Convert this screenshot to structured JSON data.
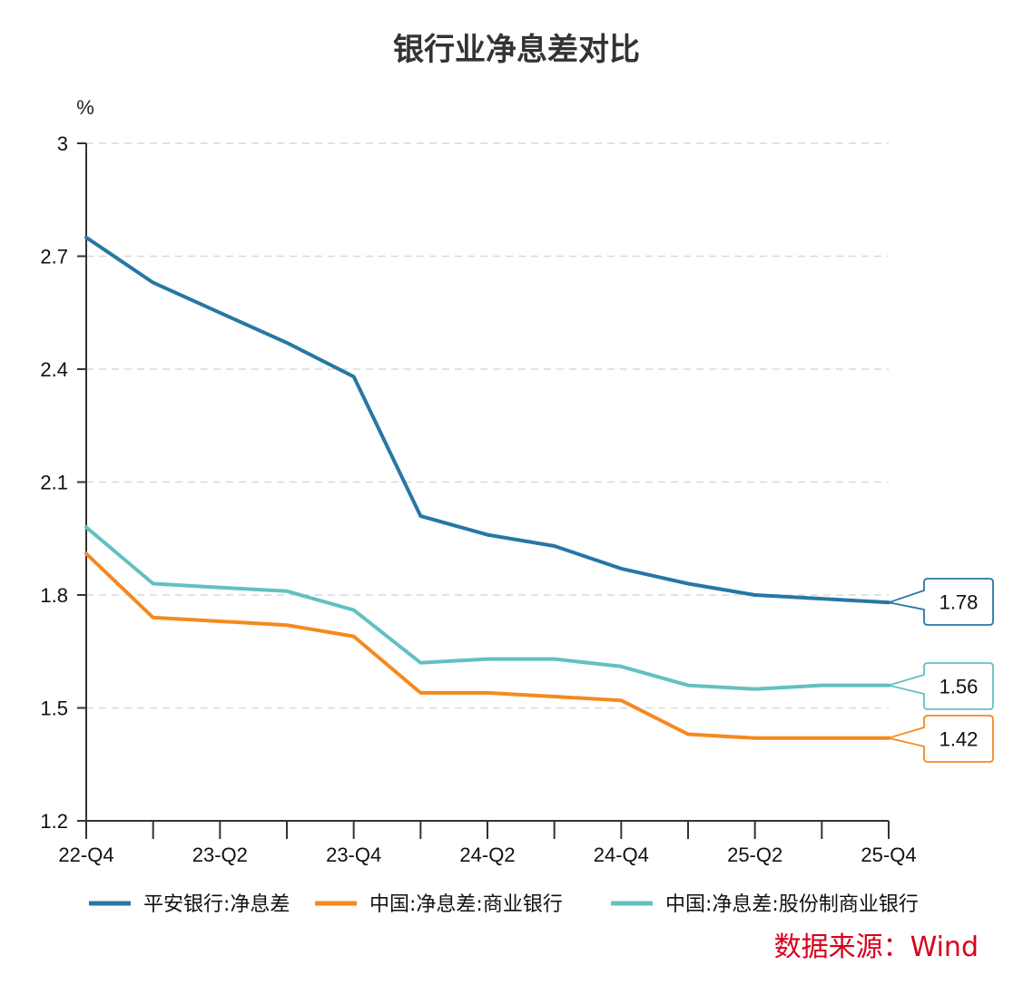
{
  "chart_data": {
    "type": "line",
    "title": "银行业净息差对比",
    "ylabel": "%",
    "xlabel": "",
    "ylim": [
      1.2,
      3
    ],
    "yticks": [
      "1.2",
      "1.5",
      "1.8",
      "2.1",
      "2.4",
      "2.7",
      "3"
    ],
    "ytick_values": [
      1.2,
      1.5,
      1.8,
      2.1,
      2.4,
      2.7,
      3
    ],
    "x": [
      "22-Q4",
      "23-Q1",
      "23-Q2",
      "23-Q3",
      "23-Q4",
      "24-Q1",
      "24-Q2",
      "24-Q3",
      "24-Q4",
      "25-Q1",
      "25-Q2",
      "25-Q3",
      "25-Q4"
    ],
    "xtick_labels": [
      "22-Q4",
      "",
      "23-Q2",
      "",
      "23-Q4",
      "",
      "24-Q2",
      "",
      "24-Q4",
      "",
      "25-Q2",
      "",
      "25-Q4"
    ],
    "grid": true,
    "legend_position": "bottom",
    "series": [
      {
        "name": "平安银行:净息差",
        "color": "#2777a4",
        "values": [
          2.75,
          2.63,
          2.55,
          2.47,
          2.38,
          2.01,
          1.96,
          1.93,
          1.87,
          1.83,
          1.8,
          1.79,
          1.78
        ],
        "end_label": "1.78"
      },
      {
        "name": "中国:净息差:商业银行",
        "color": "#f5891e",
        "values": [
          1.91,
          1.74,
          1.73,
          1.72,
          1.69,
          1.54,
          1.54,
          1.53,
          1.52,
          1.43,
          1.42,
          1.42,
          1.42
        ],
        "end_label": "1.42"
      },
      {
        "name": "中国:净息差:股份制商业银行",
        "color": "#63c0c0",
        "values": [
          1.98,
          1.83,
          1.82,
          1.81,
          1.76,
          1.62,
          1.63,
          1.63,
          1.61,
          1.56,
          1.55,
          1.56,
          1.56
        ],
        "end_label": "1.56"
      }
    ]
  },
  "source": {
    "text": "数据来源：Wind",
    "color": "#d9001b"
  }
}
